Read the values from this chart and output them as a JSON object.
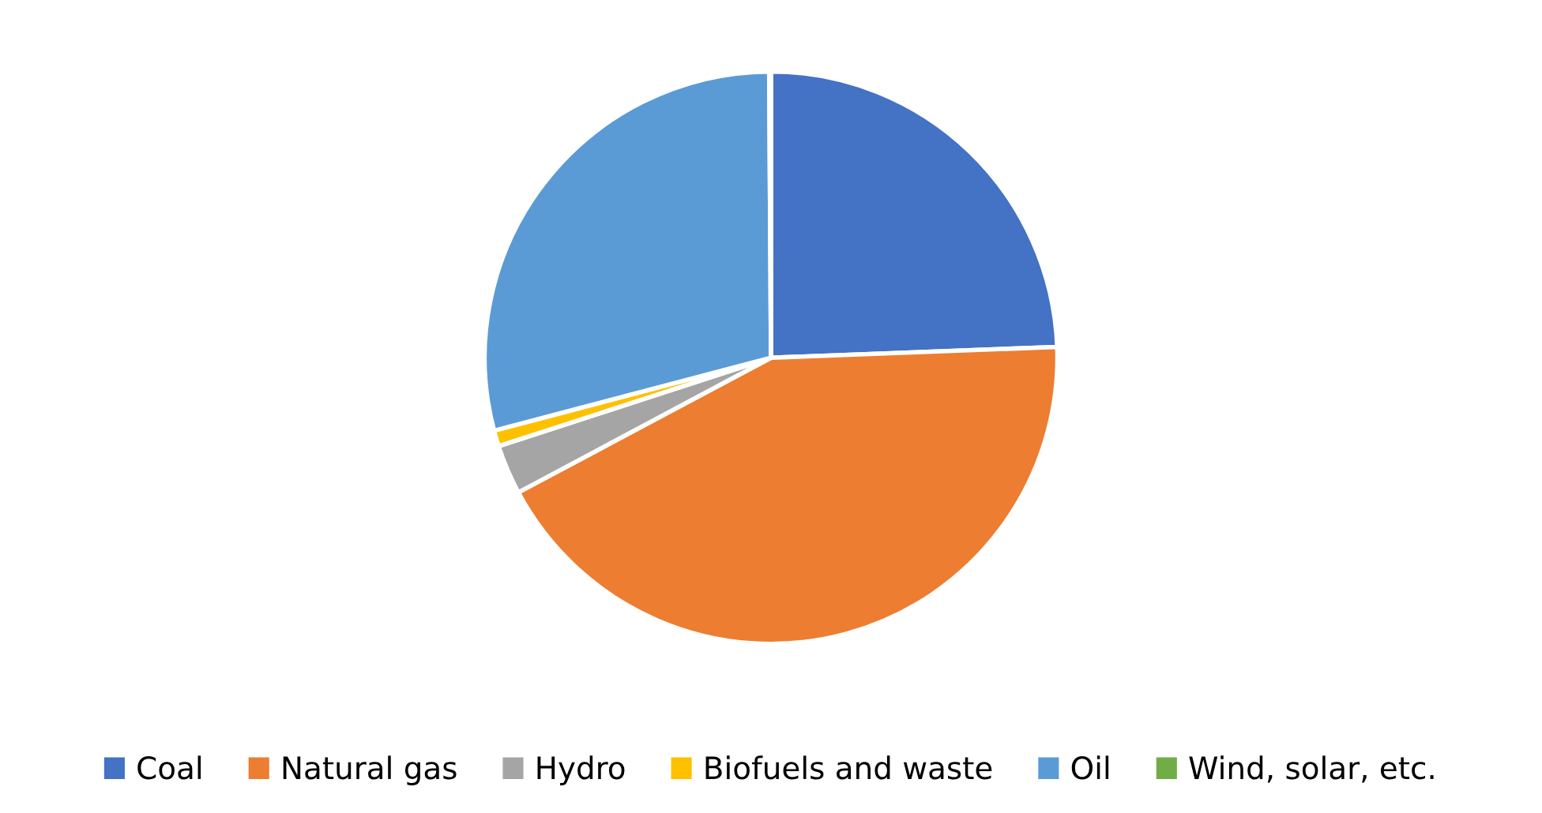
{
  "chart_data": {
    "type": "pie",
    "categories": [
      "Coal",
      "Natural gas",
      "Hydro",
      "Biofuels and waste",
      "Oil",
      "Wind, solar, etc."
    ],
    "values": [
      24.4,
      42.8,
      2.8,
      0.9,
      29.0,
      0.1
    ],
    "colors": [
      "#4472c4",
      "#ed7d31",
      "#a5a5a5",
      "#ffc000",
      "#5b9bd5",
      "#70ad47"
    ],
    "legend": "bottom"
  }
}
